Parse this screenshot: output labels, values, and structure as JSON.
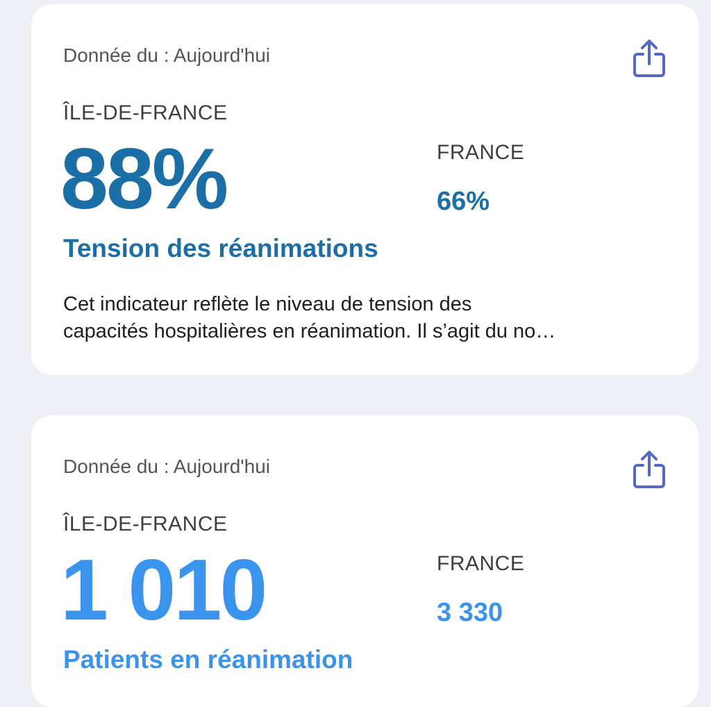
{
  "cards": [
    {
      "date_label": "Donnée du : Aujourd'hui",
      "region": "ÎLE-DE-FRANCE",
      "value": "88%",
      "france_label": "FRANCE",
      "france_value": "66%",
      "title": "Tension des réanimations",
      "description": [
        "Cet indicateur reflète le niveau de tension des",
        "capacités hospitalières en réanimation. Il s’agit du no…"
      ]
    },
    {
      "date_label": "Donnée du : Aujourd'hui",
      "region": "ÎLE-DE-FRANCE",
      "value": "1 010",
      "france_label": "FRANCE",
      "france_value": "3 330",
      "title": "Patients en réanimation"
    }
  ]
}
